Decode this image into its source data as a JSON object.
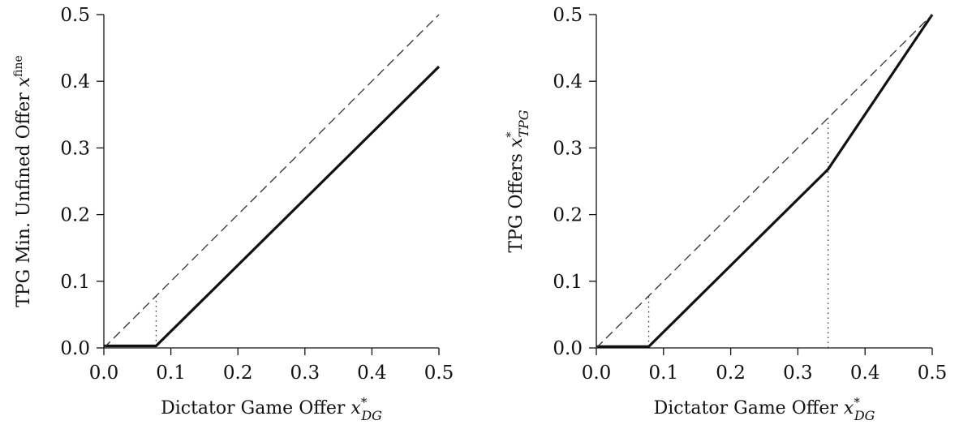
{
  "chart_data": [
    {
      "type": "line",
      "xlabel": {
        "text": "Dictator Game Offer ",
        "var": "x",
        "sup": "*",
        "sub": "DG"
      },
      "ylabel": {
        "text": "TPG Min. Unfined Offer ",
        "var": "x",
        "sup": "fine",
        "sub": ""
      },
      "xlim": [
        0,
        0.5
      ],
      "ylim": [
        0,
        0.5
      ],
      "xticks": [
        "0.0",
        "0.1",
        "0.2",
        "0.3",
        "0.4",
        "0.5"
      ],
      "yticks": [
        "0.0",
        "0.1",
        "0.2",
        "0.3",
        "0.4",
        "0.5"
      ],
      "grid": false,
      "series": [
        {
          "style": "solid",
          "x": [
            0,
            0.078,
            0.5
          ],
          "y": [
            0.003,
            0.003,
            0.422
          ]
        },
        {
          "style": "dashed",
          "x": [
            0,
            0.5
          ],
          "y": [
            0,
            0.5
          ]
        }
      ],
      "reference_lines": [
        {
          "style": "dotted",
          "x": 0.078,
          "y_from": 0.003,
          "y_to": 0.078
        }
      ]
    },
    {
      "type": "line",
      "xlabel": {
        "text": "Dictator Game Offer ",
        "var": "x",
        "sup": "*",
        "sub": "DG"
      },
      "ylabel": {
        "text": "TPG Offers ",
        "var": "x",
        "sup": "*",
        "sub": "TPG"
      },
      "xlim": [
        0,
        0.5
      ],
      "ylim": [
        0,
        0.5
      ],
      "xticks": [
        "0.0",
        "0.1",
        "0.2",
        "0.3",
        "0.4",
        "0.5"
      ],
      "yticks": [
        "0.0",
        "0.1",
        "0.2",
        "0.3",
        "0.4",
        "0.5"
      ],
      "grid": false,
      "series": [
        {
          "style": "solid",
          "x": [
            0,
            0.078,
            0.345,
            0.5
          ],
          "y": [
            0.002,
            0.002,
            0.268,
            0.5
          ]
        },
        {
          "style": "dashed",
          "x": [
            0,
            0.5
          ],
          "y": [
            0,
            0.5
          ]
        }
      ],
      "reference_lines": [
        {
          "style": "dotted",
          "x": 0.078,
          "y_from": 0.002,
          "y_to": 0.078
        },
        {
          "style": "dotted",
          "x": 0.345,
          "y_from": 0,
          "y_to": 0.345
        }
      ]
    }
  ]
}
